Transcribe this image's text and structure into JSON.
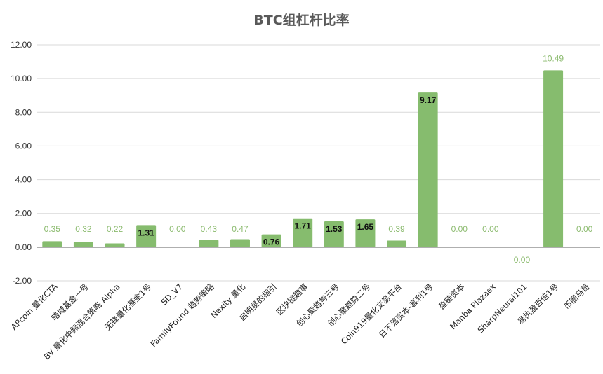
{
  "chart_data": {
    "type": "bar",
    "title": "BTC组杠杆比率",
    "xlabel": "",
    "ylabel": "",
    "ylim": [
      -2,
      12
    ],
    "yticks": [
      "-2.00",
      "0.00",
      "2.00",
      "4.00",
      "6.00",
      "8.00",
      "10.00",
      "12.00"
    ],
    "grid": true,
    "bar_color": "#86bc6e",
    "categories": [
      "APcoin 量化CTA",
      "暗域基金一号",
      "BV 量化中频混合策略 Alpha",
      "无锋量化基金1号",
      "SD_V7",
      "FamilyFound 趋势策略",
      "Nexity 量化",
      "启明星的指引",
      "区块链趣事",
      "创心聚趋势三号",
      "创心聚趋势二号",
      "Coin919量化交易平台",
      "日不落资本-套利1号",
      "盈链资本",
      "Manba Plazaex",
      "SharpNeural101",
      "易执盈百倍1号",
      "币圈马哥"
    ],
    "values": [
      0.35,
      0.32,
      0.22,
      1.31,
      0.0,
      0.43,
      0.47,
      0.76,
      1.71,
      1.53,
      1.65,
      0.39,
      9.17,
      0.0,
      0.0,
      0.0,
      10.49,
      0.0
    ],
    "labels": [
      "0.35",
      "0.32",
      "0.22",
      "1.31",
      "0.00",
      "0.43",
      "0.47",
      "0.76",
      "1.71",
      "1.53",
      "1.65",
      "0.39",
      "9.17",
      "0.00",
      "0.00",
      "0.00",
      "10.49",
      "0.00"
    ]
  }
}
